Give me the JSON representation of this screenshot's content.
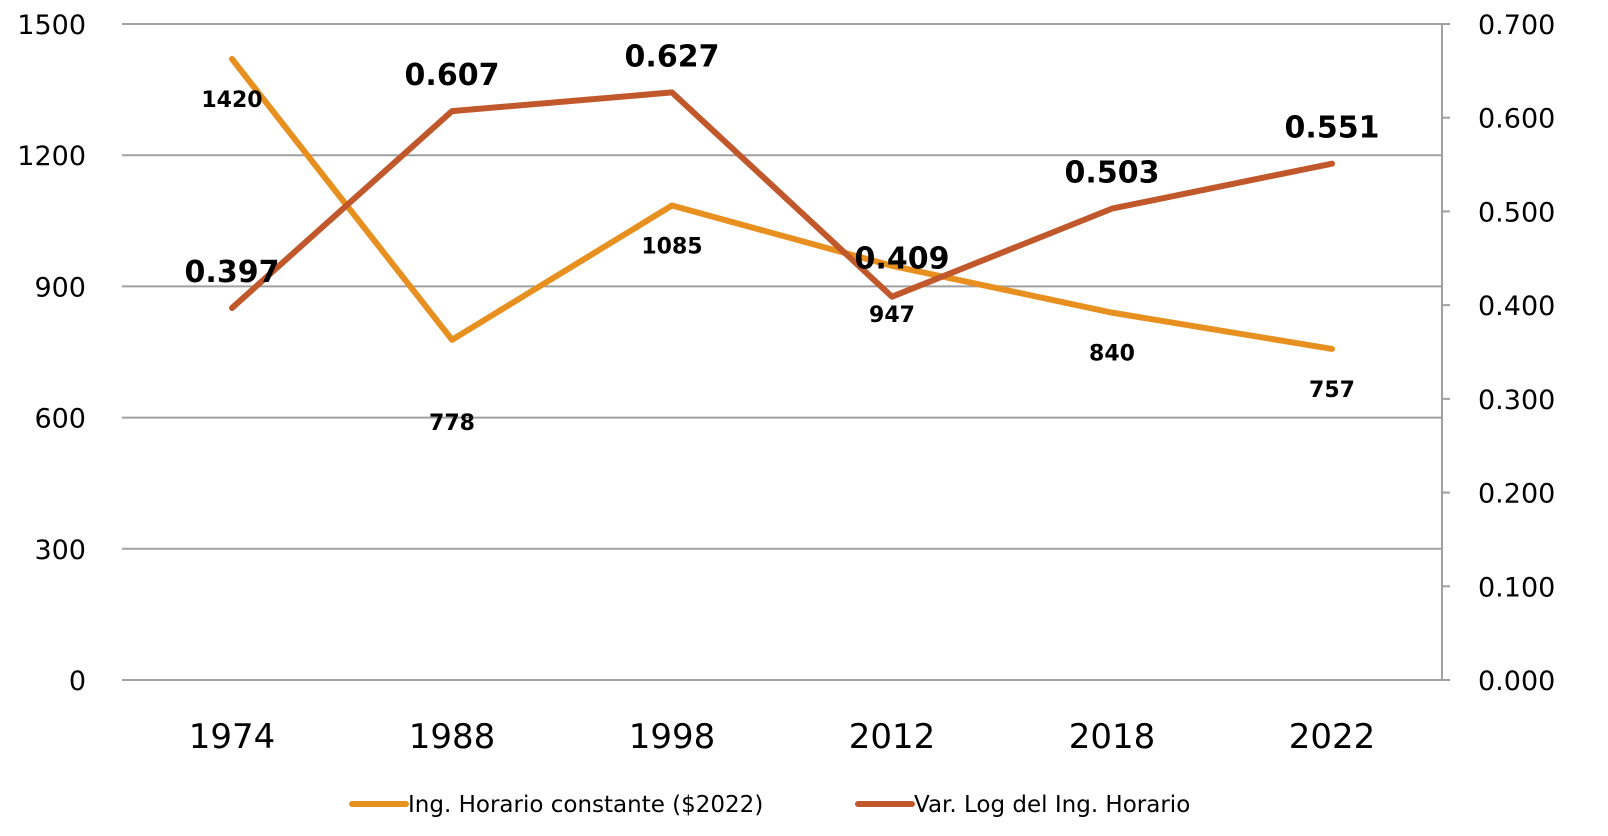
{
  "chart_data": {
    "type": "line",
    "categories": [
      "1974",
      "1988",
      "1998",
      "2012",
      "2018",
      "2022"
    ],
    "series": [
      {
        "name": "Ing. Horario constante ($2022)",
        "axis": "left",
        "color": "#E8901F",
        "values": [
          1420,
          778,
          1085,
          947,
          840,
          757
        ],
        "labels": [
          "1420",
          "778",
          "1085",
          "947",
          "840",
          "757"
        ]
      },
      {
        "name": "Var. Log del Ing. Horario",
        "axis": "right",
        "color": "#C0582C",
        "values": [
          0.397,
          0.607,
          0.627,
          0.409,
          0.503,
          0.551
        ],
        "labels": [
          "0.397",
          "0.607",
          "0.627",
          "0.409",
          "0.503",
          "0.551"
        ]
      }
    ],
    "y_left": {
      "ylim": [
        0,
        1500
      ],
      "ticks": [
        "0",
        "300",
        "600",
        "900",
        "1200",
        "1500"
      ]
    },
    "y_right": {
      "ylim": [
        0,
        0.7
      ],
      "ticks": [
        "0.000",
        "0.100",
        "0.200",
        "0.300",
        "0.400",
        "0.500",
        "0.600",
        "0.700"
      ]
    },
    "grid": true,
    "legend": "bottom",
    "colors": {
      "gridline": "#A0A0A0",
      "axis": "#A0A0A0"
    }
  }
}
